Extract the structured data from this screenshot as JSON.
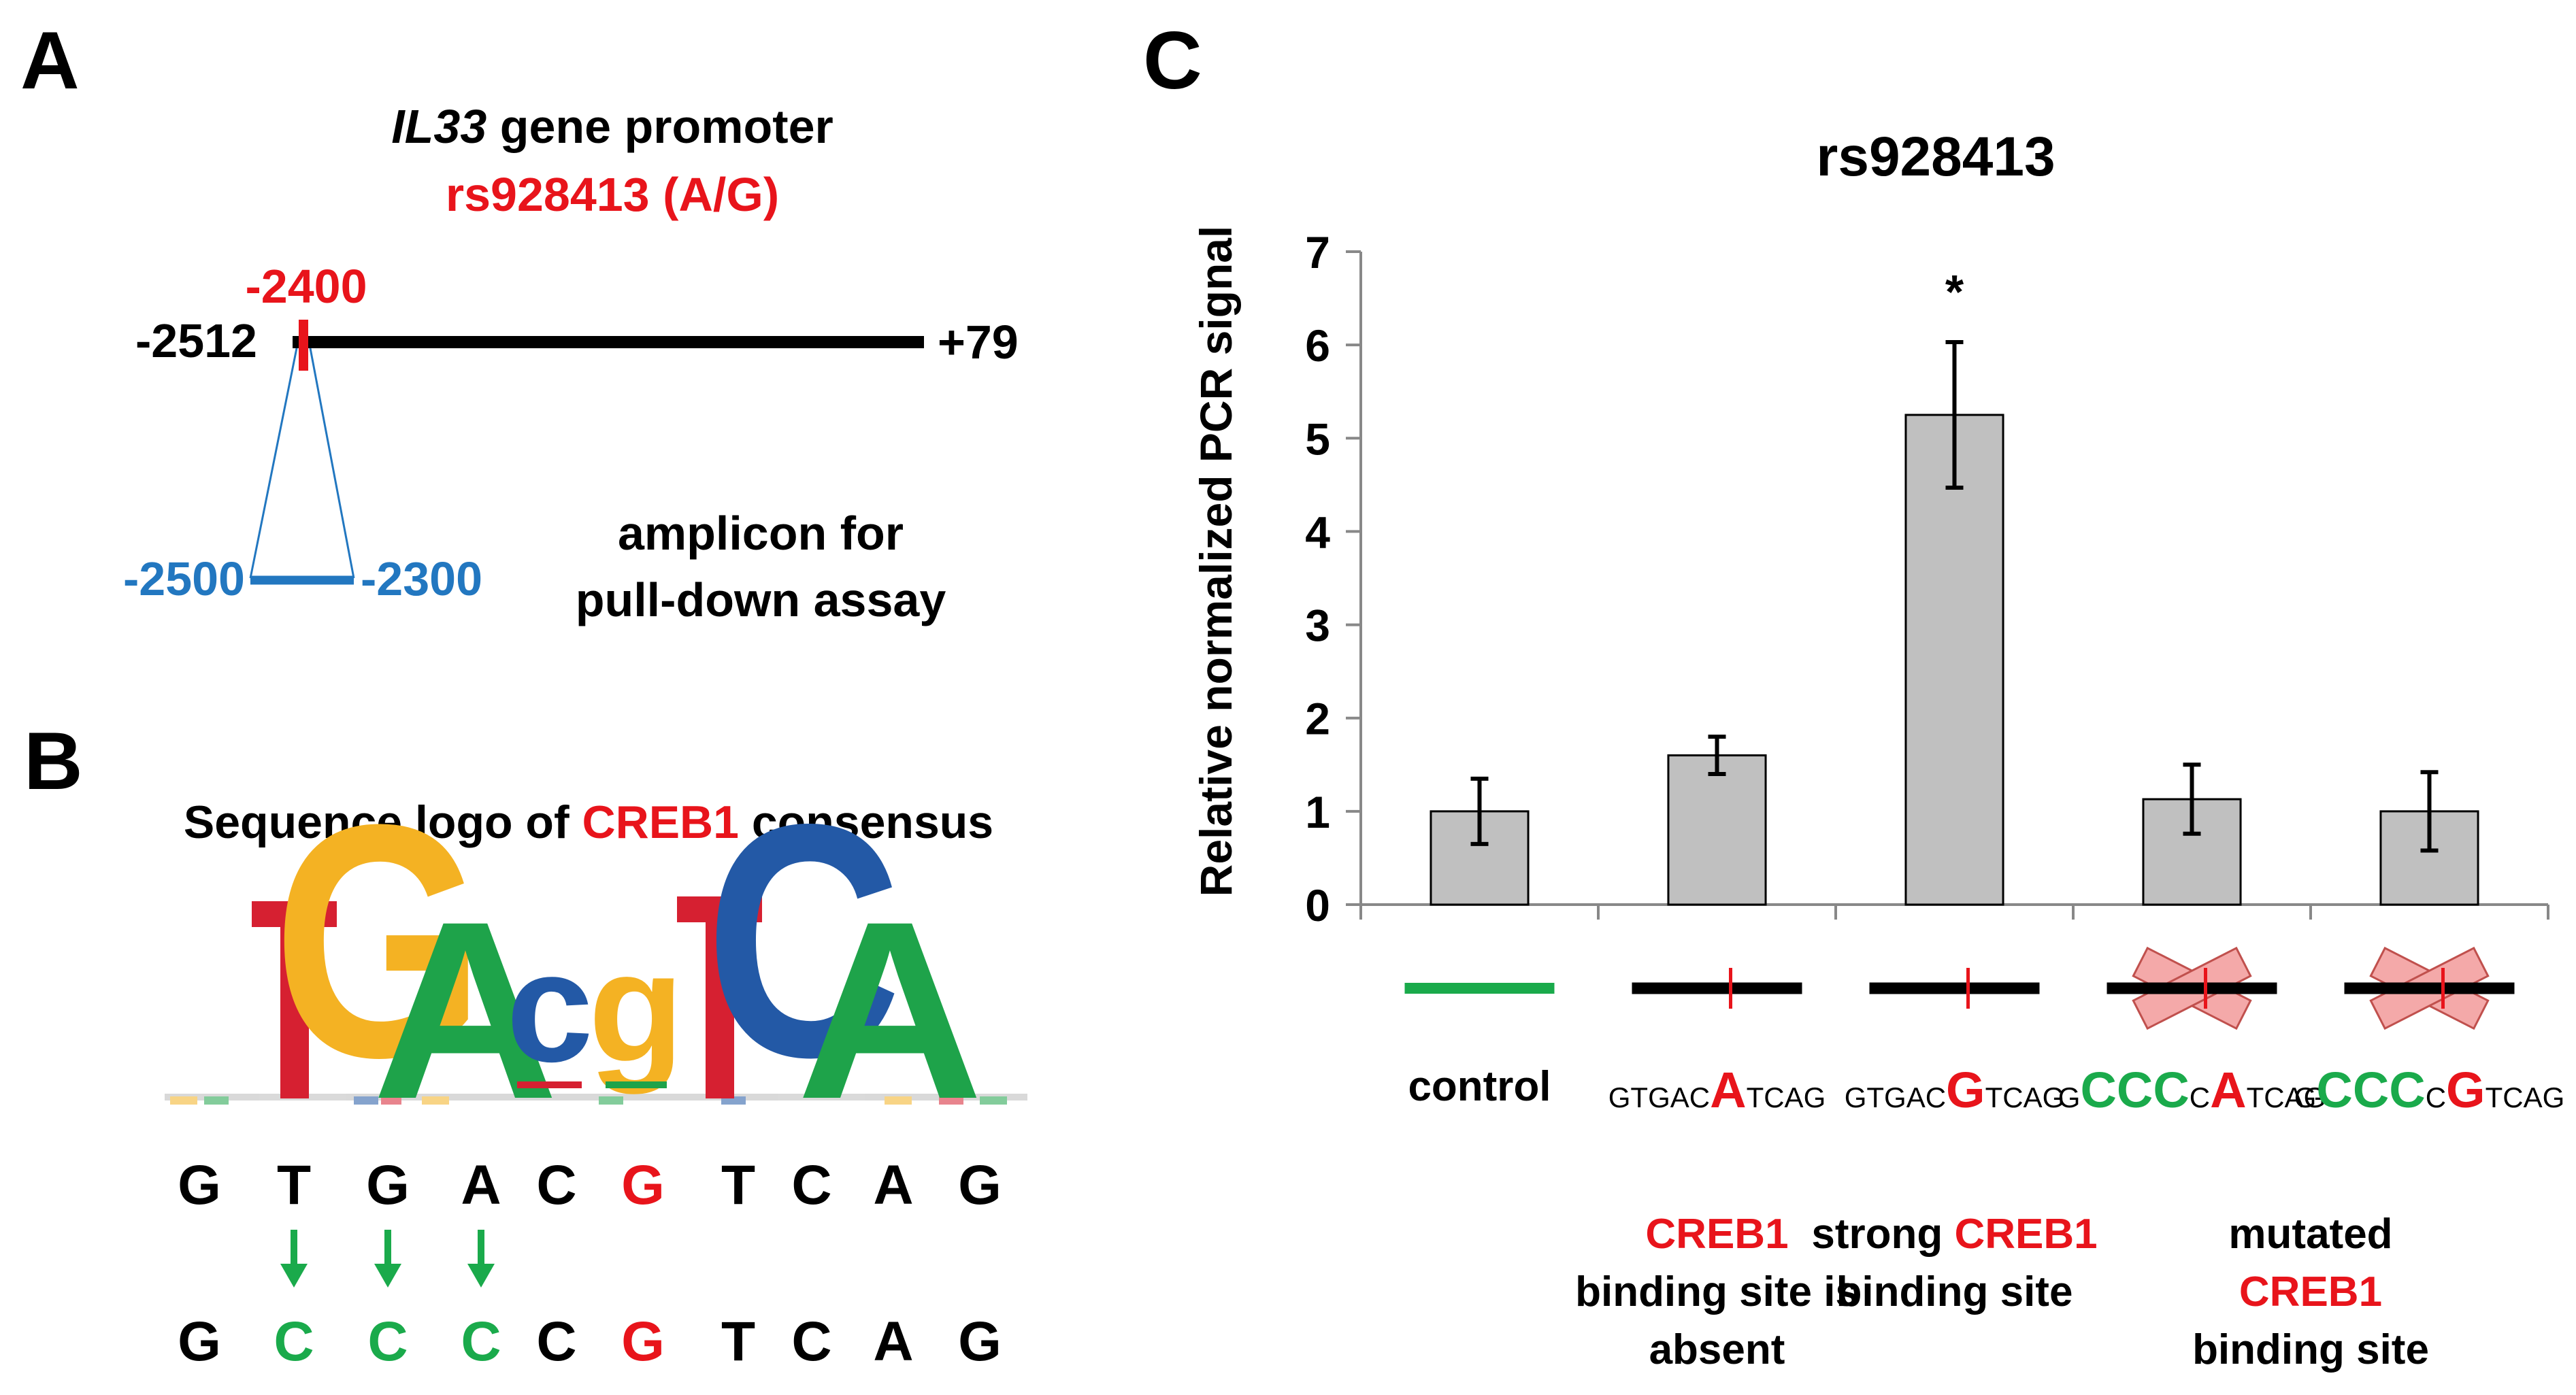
{
  "colors": {
    "black": "#000000",
    "red": "#e8141b",
    "blue": "#2277c0",
    "green": "#1aaa4b",
    "bar_fill": "#c0c0c0",
    "cross": "#f4a9a9",
    "logo_T": "#d62031",
    "logo_G": "#f4b223",
    "logo_A": "#1ea34a",
    "logo_C": "#2359a6"
  },
  "panelA": {
    "label": "A",
    "gene_italic": "IL33",
    "gene_suffix": " gene promoter",
    "snp": "rs928413 (A/G)",
    "pos_snp": "-2400",
    "pos_start": "-2512",
    "pos_end": "+79",
    "amp_start": "-2500",
    "amp_end": "-2300",
    "amplicon_line1": "amplicon for",
    "amplicon_line2": "pull-down assay"
  },
  "panelB": {
    "label": "B",
    "title_pre": "Sequence logo of ",
    "title_red": "CREB1",
    "title_post": " consensus",
    "logo_letters": [
      "T",
      "G",
      "A",
      "c",
      "g",
      "T",
      "C",
      "A"
    ],
    "seq_wild": [
      {
        "t": "G",
        "c": "black"
      },
      {
        "t": "T",
        "c": "black"
      },
      {
        "t": "G",
        "c": "black"
      },
      {
        "t": "A",
        "c": "black"
      },
      {
        "t": "C",
        "c": "black"
      },
      {
        "t": "G",
        "c": "red"
      },
      {
        "t": "T",
        "c": "black"
      },
      {
        "t": "C",
        "c": "black"
      },
      {
        "t": "A",
        "c": "black"
      },
      {
        "t": "G",
        "c": "black"
      }
    ],
    "seq_mut": [
      {
        "t": "G",
        "c": "black"
      },
      {
        "t": "C",
        "c": "green"
      },
      {
        "t": "C",
        "c": "green"
      },
      {
        "t": "C",
        "c": "green"
      },
      {
        "t": "C",
        "c": "black"
      },
      {
        "t": "G",
        "c": "red"
      },
      {
        "t": "T",
        "c": "black"
      },
      {
        "t": "C",
        "c": "black"
      },
      {
        "t": "A",
        "c": "black"
      },
      {
        "t": "G",
        "c": "black"
      }
    ],
    "arrow_columns": [
      1,
      2,
      3
    ]
  },
  "panelC": {
    "label": "C",
    "control_label": "control",
    "seq_labels": [
      [
        {
          "t": "GTGAC",
          "c": "black",
          "big": false
        },
        {
          "t": "A",
          "c": "red",
          "big": true
        },
        {
          "t": "TCAG",
          "c": "black",
          "big": false
        }
      ],
      [
        {
          "t": "GTGAC",
          "c": "black",
          "big": false
        },
        {
          "t": "G",
          "c": "red",
          "big": true
        },
        {
          "t": "TCAG",
          "c": "black",
          "big": false
        }
      ],
      [
        {
          "t": "G",
          "c": "black",
          "big": false
        },
        {
          "t": "CCC",
          "c": "green",
          "big": true
        },
        {
          "t": "C",
          "c": "black",
          "big": false
        },
        {
          "t": "A",
          "c": "red",
          "big": true
        },
        {
          "t": "TCAG",
          "c": "black",
          "big": false
        }
      ],
      [
        {
          "t": "G",
          "c": "black",
          "big": false
        },
        {
          "t": "CCC",
          "c": "green",
          "big": true
        },
        {
          "t": "C",
          "c": "black",
          "big": false
        },
        {
          "t": "G",
          "c": "red",
          "big": true
        },
        {
          "t": "TCAG",
          "c": "black",
          "big": false
        }
      ]
    ],
    "notes": [
      {
        "category": 1,
        "lines": [
          [
            {
              "t": "CREB1",
              "c": "red"
            }
          ],
          [
            {
              "t": "binding site is",
              "c": "black"
            }
          ],
          [
            {
              "t": "absent",
              "c": "black"
            }
          ]
        ]
      },
      {
        "category": 2,
        "lines": [
          [
            {
              "t": "strong ",
              "c": "black"
            },
            {
              "t": "CREB1",
              "c": "red"
            }
          ],
          [
            {
              "t": "binding site",
              "c": "black"
            }
          ]
        ]
      },
      {
        "category": 3.5,
        "lines": [
          [
            {
              "t": "mutated",
              "c": "black"
            }
          ],
          [
            {
              "t": "CREB1",
              "c": "red"
            }
          ],
          [
            {
              "t": "binding site",
              "c": "black"
            }
          ]
        ]
      }
    ]
  },
  "chart_data": {
    "type": "bar",
    "title": "rs928413",
    "xlabel": "",
    "ylabel": "Relative normalized PCR signal",
    "ylim": [
      0,
      7
    ],
    "yticks": [
      0,
      1,
      2,
      3,
      4,
      5,
      6,
      7
    ],
    "categories": [
      "control",
      "GTGACATCAG",
      "GTGACGTCAG",
      "GCCCCATCAG",
      "GCCCCGTCAG"
    ],
    "values": [
      1.0,
      1.6,
      5.25,
      1.13,
      1.0
    ],
    "errors": [
      0.35,
      0.2,
      0.78,
      0.37,
      0.42
    ],
    "significance": [
      "",
      "",
      "*",
      "",
      ""
    ],
    "grid": false
  }
}
